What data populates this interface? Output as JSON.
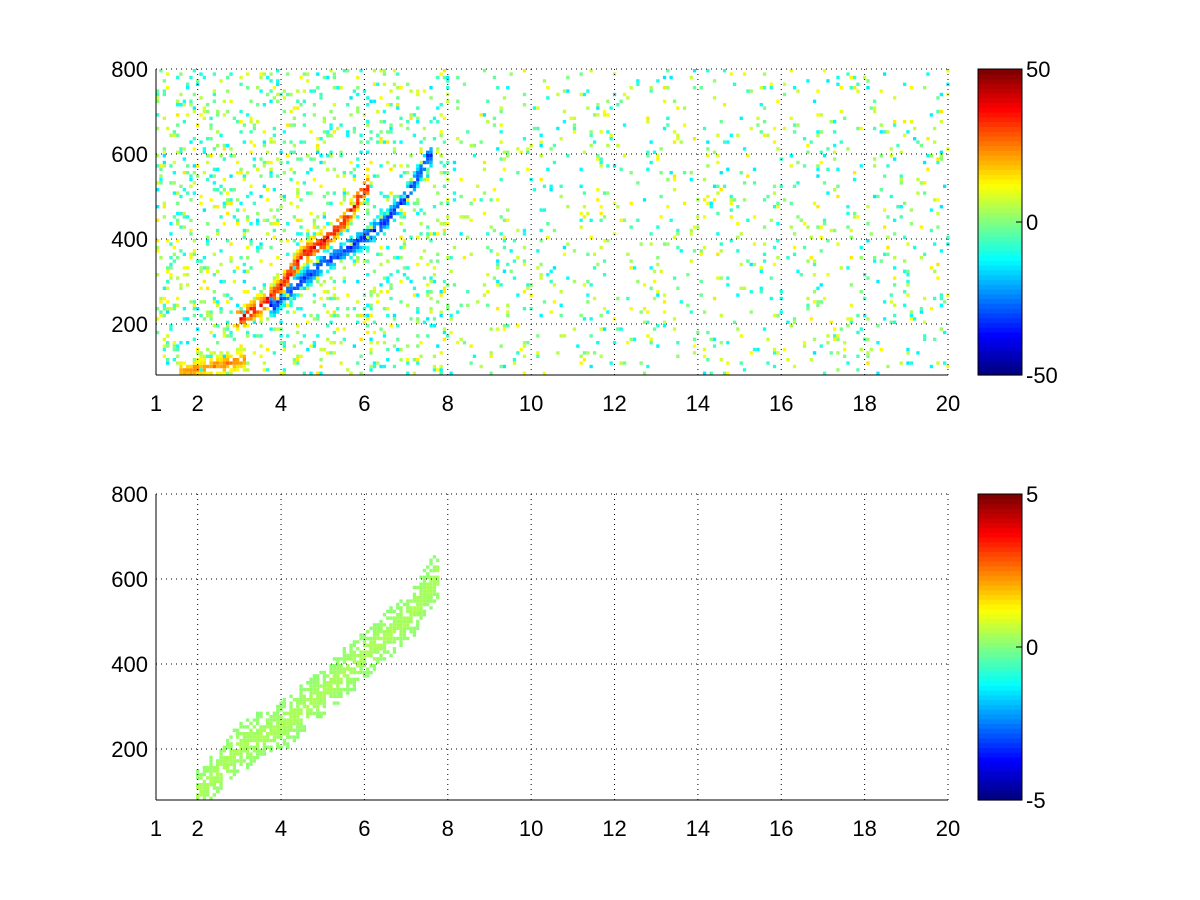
{
  "colors": {
    "background": "#ffffff",
    "axis": "#000000",
    "grid": "#000000",
    "jet_low": "#00008f",
    "jet_high": "#800000"
  },
  "chart_data": [
    {
      "type": "heatmap",
      "title": "",
      "xlabel": "",
      "ylabel": "",
      "xlim": [
        1,
        20
      ],
      "ylim": [
        80,
        800
      ],
      "xticks": [
        1,
        2,
        4,
        6,
        8,
        10,
        12,
        14,
        16,
        18,
        20
      ],
      "yticks": [
        200,
        400,
        600,
        800
      ],
      "grid": true,
      "colormap": "jet",
      "clim": [
        -50,
        50
      ],
      "colorbar_ticks": [
        -50,
        0,
        50
      ],
      "features": [
        {
          "name": "positive ridge",
          "x": [
            3.0,
            3.5,
            4.0,
            4.5,
            5.0,
            5.5,
            6.0
          ],
          "y": [
            210,
            240,
            290,
            360,
            390,
            440,
            520
          ],
          "peak_value": 45
        },
        {
          "name": "negative ridge",
          "x": [
            3.8,
            4.5,
            5.0,
            5.5,
            6.0,
            6.5,
            7.0,
            7.5
          ],
          "y": [
            240,
            300,
            340,
            370,
            400,
            440,
            500,
            590
          ],
          "peak_value": -40
        },
        {
          "name": "low positive band",
          "x": [
            1.6,
            2.0,
            2.5,
            3.0
          ],
          "y": [
            85,
            90,
            100,
            110
          ],
          "peak_value": 30
        }
      ],
      "value_range_scattered": [
        -15,
        15
      ]
    },
    {
      "type": "heatmap",
      "title": "",
      "xlabel": "",
      "ylabel": "",
      "xlim": [
        1,
        20
      ],
      "ylim": [
        80,
        800
      ],
      "xticks": [
        1,
        2,
        4,
        6,
        8,
        10,
        12,
        14,
        16,
        18,
        20
      ],
      "yticks": [
        200,
        400,
        600,
        800
      ],
      "grid": true,
      "colormap": "jet",
      "clim": [
        -5,
        5
      ],
      "colorbar_ticks": [
        -5,
        0,
        5
      ],
      "features": [
        {
          "name": "main band",
          "x": [
            2.0,
            3.0,
            4.0,
            5.0,
            6.0,
            7.0,
            7.7
          ],
          "y": [
            90,
            200,
            250,
            330,
            420,
            500,
            600
          ],
          "peak_value": 0.5
        }
      ],
      "value_range_scattered": [
        -1,
        1
      ]
    }
  ]
}
